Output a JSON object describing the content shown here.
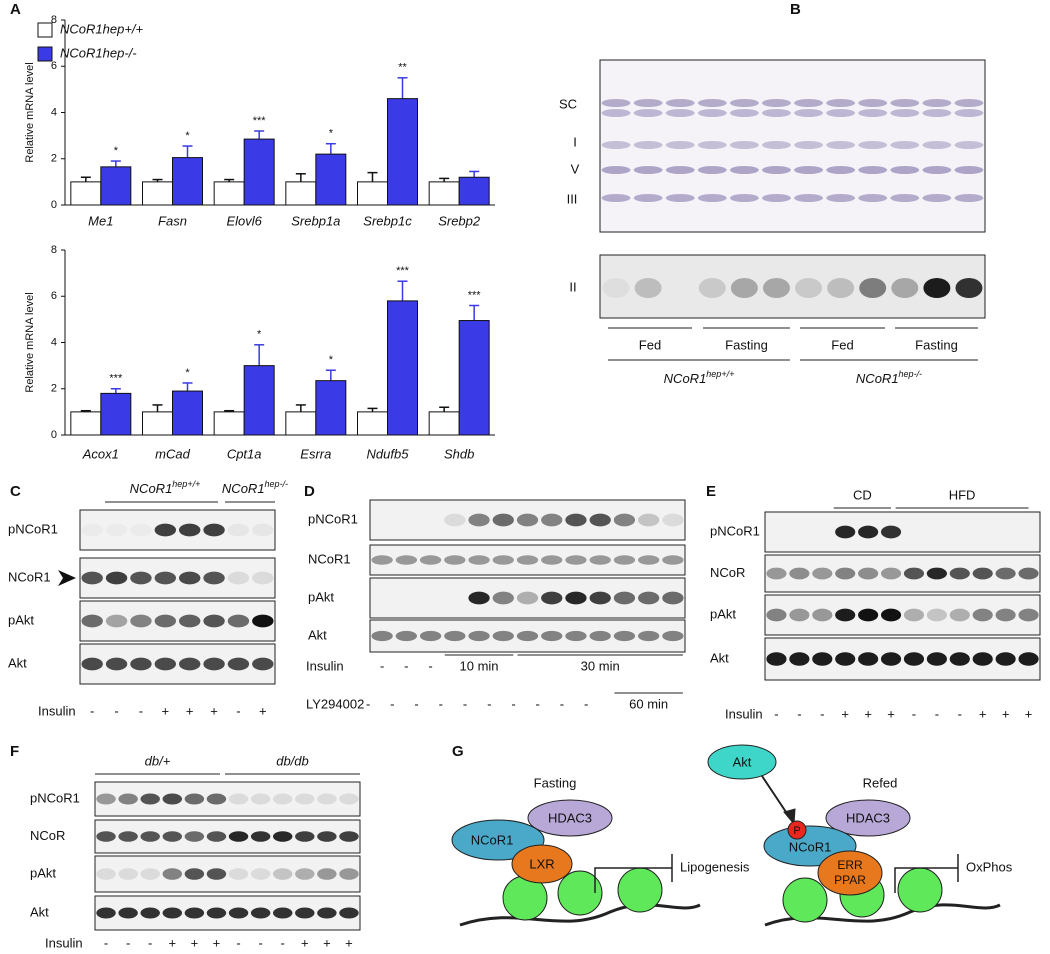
{
  "panel_labels": [
    "A",
    "B",
    "C",
    "D",
    "E",
    "F",
    "G"
  ],
  "chart_data": [
    {
      "type": "bar",
      "ylabel": "Relative mRNA level",
      "categories": [
        "Me1",
        "Fasn",
        "Elovl6",
        "Srebp1a",
        "Srebp1c",
        "Srebp2"
      ],
      "series": [
        {
          "name": "NCoR1hep+/+",
          "color": "#ffffff",
          "values": [
            1,
            1,
            1,
            1,
            1,
            1
          ],
          "errors": [
            0.2,
            0.1,
            0.1,
            0.35,
            0.4,
            0.15
          ]
        },
        {
          "name": "NCoR1hep-/-",
          "color": "#3a3ae6",
          "values": [
            1.65,
            2.05,
            2.85,
            2.2,
            4.6,
            1.2
          ],
          "errors": [
            0.25,
            0.5,
            0.35,
            0.45,
            0.9,
            0.25
          ]
        }
      ],
      "annotations": [
        "*",
        "*",
        "***",
        "*",
        "**",
        null
      ],
      "ylim": [
        0,
        8
      ],
      "yticks": [
        0,
        2,
        4,
        6,
        8
      ]
    },
    {
      "type": "bar",
      "ylabel": "Relative mRNA level",
      "categories": [
        "Acox1",
        "mCad",
        "Cpt1a",
        "Esrra",
        "Ndufb5",
        "Shdb"
      ],
      "series": [
        {
          "name": "NCoR1hep+/+",
          "color": "#ffffff",
          "values": [
            1,
            1,
            1,
            1,
            1,
            1
          ],
          "errors": [
            0.05,
            0.3,
            0.05,
            0.3,
            0.15,
            0.2
          ]
        },
        {
          "name": "NCoR1hep-/-",
          "color": "#3a3ae6",
          "values": [
            1.8,
            1.9,
            3.0,
            2.35,
            5.8,
            4.95
          ],
          "errors": [
            0.2,
            0.35,
            0.9,
            0.45,
            0.85,
            0.65
          ]
        }
      ],
      "annotations": [
        "***",
        "*",
        "*",
        "*",
        "***",
        "***"
      ],
      "ylim": [
        0,
        8
      ],
      "yticks": [
        0,
        2,
        4,
        6,
        8
      ]
    }
  ],
  "blot_B": {
    "bands": [
      "SC",
      "I",
      "V",
      "III"
    ],
    "band_lower": "II",
    "groups": [
      "Fed",
      "Fasting",
      "Fed",
      "Fasting"
    ],
    "genotypes": [
      {
        "name": "NCoR1",
        "sup": "hep+/+"
      },
      {
        "name": "NCoR1",
        "sup": "hep-/-"
      }
    ]
  },
  "blot_C": {
    "genotypes": [
      {
        "name": "NCoR1",
        "sup": "hep+/+"
      },
      {
        "name": "NCoR1",
        "sup": "hep-/-"
      }
    ],
    "rows": [
      "pNCoR1",
      "NCoR1",
      "pAkt",
      "Akt"
    ],
    "treatment": "Insulin",
    "lanes": [
      "-",
      "-",
      "-",
      "+",
      "+",
      "+",
      "-",
      "+"
    ]
  },
  "blot_D": {
    "rows": [
      "pNCoR1",
      "NCoR1",
      "pAkt",
      "Akt"
    ],
    "treatments": [
      {
        "name": "Insulin",
        "lanes": [
          "-",
          "-",
          "-"
        ],
        "periods": [
          "10 min",
          "30 min"
        ]
      },
      {
        "name": "LY294002",
        "lanes": [
          "-",
          "-",
          "-",
          "-",
          "-",
          "-",
          "-",
          "-",
          "-",
          "-"
        ],
        "periods": [
          "60 min"
        ]
      }
    ]
  },
  "blot_E": {
    "groups": [
      "CD",
      "HFD"
    ],
    "rows": [
      "pNCoR1",
      "NCoR",
      "pAkt",
      "Akt"
    ],
    "treatment": "Insulin",
    "lanes": [
      "-",
      "-",
      "-",
      "+",
      "+",
      "+",
      "-",
      "-",
      "-",
      "+",
      "+",
      "+"
    ]
  },
  "blot_F": {
    "groups": [
      "db/+",
      "db/db"
    ],
    "rows": [
      "pNCoR1",
      "NCoR",
      "pAkt",
      "Akt"
    ],
    "treatment": "Insulin",
    "lanes": [
      "-",
      "-",
      "-",
      "+",
      "+",
      "+",
      "-",
      "-",
      "-",
      "+",
      "+",
      "+"
    ]
  },
  "model_G": {
    "fasting": {
      "title": "Fasting",
      "hdac": "HDAC3",
      "ncor": "NCoR1",
      "factor": "LXR",
      "target": "Lipogenesis"
    },
    "refed": {
      "title": "Refed",
      "kinase": "Akt",
      "phospho": "P",
      "hdac": "HDAC3",
      "ncor": "NCoR1",
      "factors": [
        "ERR",
        "PPAR"
      ],
      "target": "OxPhos"
    }
  }
}
